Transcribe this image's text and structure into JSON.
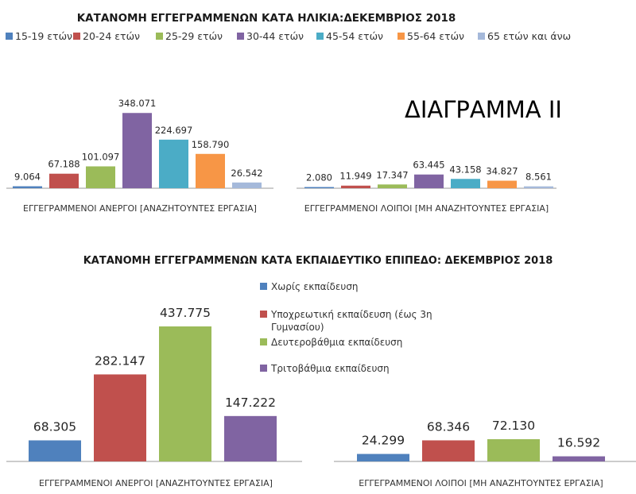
{
  "big_label": "ΔΙΑΓΡΑΜΜΑ ΙΙ",
  "chart_data": [
    {
      "type": "bar",
      "title": "ΚΑΤΑΝΟΜΗ ΕΓΓΕΓΡΑΜΜΕΝΩΝ ΚΑΤΑ ΗΛΙΚΙΑ:ΔΕΚΕΜΒΡΙΟΣ 2018",
      "categories": [
        "ΕΓΓΕΓΡΑΜΜΕΝΟΙ ΑΝΕΡΓΟΙ [ΑΝΑΖΗΤΟΥΝΤΕΣ ΕΡΓΑΣΙΑ]",
        "ΕΓΓΕΓΡΑΜΜΕΝΟΙ ΛΟΙΠΟΙ [ΜΗ ΑΝΑΖΗΤΟΥΝΤΕΣ ΕΡΓΑΣΙΑ]"
      ],
      "legend_position": "top",
      "grid": false,
      "ylim": [
        0,
        360000
      ],
      "series": [
        {
          "name": "15-19 ετών",
          "color": "#4F81BD",
          "values": [
            9064,
            2080
          ],
          "labels": [
            "9.064",
            "2.080"
          ]
        },
        {
          "name": "20-24 ετών",
          "color": "#C0504D",
          "values": [
            67188,
            11949
          ],
          "labels": [
            "67.188",
            "11.949"
          ]
        },
        {
          "name": "25-29 ετών",
          "color": "#9BBB59",
          "values": [
            101097,
            17347
          ],
          "labels": [
            "101.097",
            "17.347"
          ]
        },
        {
          "name": "30-44 ετών",
          "color": "#8064A2",
          "values": [
            348071,
            63445
          ],
          "labels": [
            "348.071",
            "63.445"
          ]
        },
        {
          "name": "45-54 ετών",
          "color": "#4BACC6",
          "values": [
            224697,
            43158
          ],
          "labels": [
            "224.697",
            "43.158"
          ]
        },
        {
          "name": "55-64 ετών",
          "color": "#F79646",
          "values": [
            158790,
            34827
          ],
          "labels": [
            "158.790",
            "34.827"
          ]
        },
        {
          "name": "65 ετών και άνω",
          "color": "#A5B9DA",
          "values": [
            26542,
            8561
          ],
          "labels": [
            "26.542",
            "8.561"
          ]
        }
      ]
    },
    {
      "type": "bar",
      "title": "ΚΑΤΑΝΟΜΗ ΕΓΓΕΓΡΑΜΜΕΝΩΝ ΚΑΤΑ ΕΚΠΑΙΔΕΥΤΙΚΟ ΕΠΙΠΕΔΟ: ΔΕΚΕΜΒΡΙΟΣ 2018",
      "categories": [
        "ΕΓΓΕΓΡΑΜΜΕΝΟΙ ΑΝΕΡΓΟΙ [ΑΝΑΖΗΤΟΥΝΤΕΣ ΕΡΓΑΣΙΑ]",
        "ΕΓΓΕΓΡΑΜΜΕΝΟΙ ΛΟΙΠΟΙ [ΜΗ ΑΝΑΖΗΤΟΥΝΤΕΣ ΕΡΓΑΣΙΑ]"
      ],
      "legend_position": "top-center",
      "grid": false,
      "ylim": [
        0,
        450000
      ],
      "series": [
        {
          "name": "Χωρίς εκπαίδευση",
          "color": "#4F81BD",
          "values": [
            68305,
            24299
          ],
          "labels": [
            "68.305",
            "24.299"
          ]
        },
        {
          "name": "Υποχρεωτική εκπαίδευση (έως 3η Γυμνασίου)",
          "name_lines": [
            "Υποχρεωτική εκπαίδευση (έως 3η",
            "Γυμνασίου)"
          ],
          "color": "#C0504D",
          "values": [
            282147,
            68346
          ],
          "labels": [
            "282.147",
            "68.346"
          ]
        },
        {
          "name": "Δευτεροβάθμια εκπαίδευση",
          "color": "#9BBB59",
          "values": [
            437775,
            72130
          ],
          "labels": [
            "437.775",
            "72.130"
          ]
        },
        {
          "name": "Τριτοβάθμια εκπαίδευση",
          "color": "#8064A2",
          "values": [
            147222,
            16592
          ],
          "labels": [
            "147.222",
            "16.592"
          ]
        }
      ]
    }
  ]
}
